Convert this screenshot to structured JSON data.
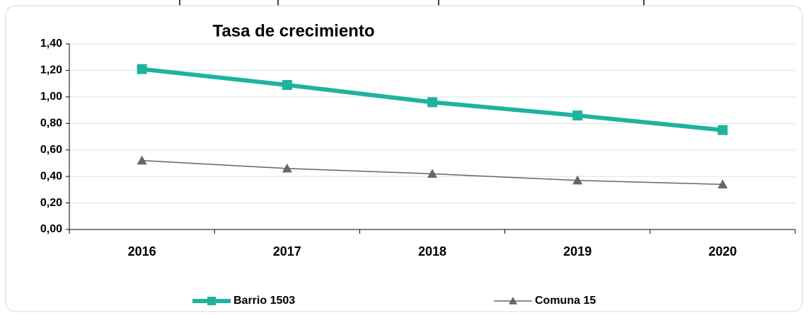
{
  "chart_data": {
    "type": "line",
    "title": "Tasa de crecimiento",
    "categories": [
      "2016",
      "2017",
      "2018",
      "2019",
      "2020"
    ],
    "series": [
      {
        "name": "Barrio 1503",
        "color": "#1fb39e",
        "marker": "square",
        "values": [
          1.21,
          1.09,
          0.96,
          0.86,
          0.75
        ]
      },
      {
        "name": "Comuna 15",
        "color": "#666666",
        "marker": "triangle",
        "values": [
          0.52,
          0.46,
          0.42,
          0.37,
          0.34
        ]
      }
    ],
    "ylim": [
      0,
      1.4
    ],
    "yticks": [
      {
        "value": 0,
        "label": "0,00"
      },
      {
        "value": 0.2,
        "label": "0,20"
      },
      {
        "value": 0.4,
        "label": "0,40"
      },
      {
        "value": 0.6,
        "label": "0,60"
      },
      {
        "value": 0.8,
        "label": "0,80"
      },
      {
        "value": 1.0,
        "label": "1,00"
      },
      {
        "value": 1.2,
        "label": "1,20"
      },
      {
        "value": 1.4,
        "label": "1,40"
      }
    ],
    "grid": true,
    "legend": "bottom"
  }
}
